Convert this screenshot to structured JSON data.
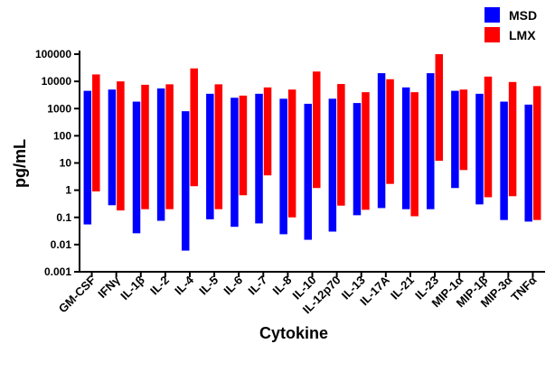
{
  "chart_data": {
    "type": "bar",
    "subtype": "floating-range",
    "xlabel": "Cytokine",
    "ylabel": "pg/mL",
    "yscale": "log",
    "ylim": [
      0.001,
      100000
    ],
    "y_ticks": [
      "0.001",
      "0.01",
      "0.1",
      "1",
      "10",
      "100",
      "1000",
      "10000",
      "100000"
    ],
    "grid": false,
    "legend_position": "top-right",
    "categories": [
      "GM-CSF",
      "IFNγ",
      "IL-1β",
      "IL-2",
      "IL-4",
      "IL-5",
      "IL-6",
      "IL-7",
      "IL-8",
      "IL-10",
      "IL-12p70",
      "IL-13",
      "IL-17A",
      "IL-21",
      "IL-23",
      "MIP-1α",
      "MIP-1β",
      "MIP-3α",
      "TNFα"
    ],
    "series": [
      {
        "name": "MSD",
        "color": "#0000ff",
        "low": [
          0.055,
          0.28,
          0.026,
          0.075,
          0.006,
          0.085,
          0.045,
          0.06,
          0.024,
          0.015,
          0.03,
          0.12,
          0.22,
          0.2,
          0.2,
          1.2,
          0.3,
          0.08,
          0.07
        ],
        "high": [
          4500,
          5000,
          1800,
          5500,
          800,
          3500,
          2500,
          3500,
          2300,
          1500,
          2300,
          1600,
          20000,
          6000,
          20000,
          4500,
          3500,
          1800,
          1400
        ]
      },
      {
        "name": "LMX",
        "color": "#ff0000",
        "low": [
          0.9,
          0.18,
          0.2,
          0.2,
          1.4,
          0.2,
          0.65,
          3.5,
          0.1,
          1.2,
          0.27,
          0.19,
          1.7,
          0.11,
          12,
          5.5,
          0.55,
          0.6,
          0.08
        ],
        "high": [
          18000,
          10000,
          7500,
          7800,
          30000,
          7800,
          3000,
          6000,
          5000,
          23000,
          8000,
          4000,
          12000,
          4000,
          100000,
          5000,
          15000,
          9500,
          6700
        ]
      }
    ]
  }
}
